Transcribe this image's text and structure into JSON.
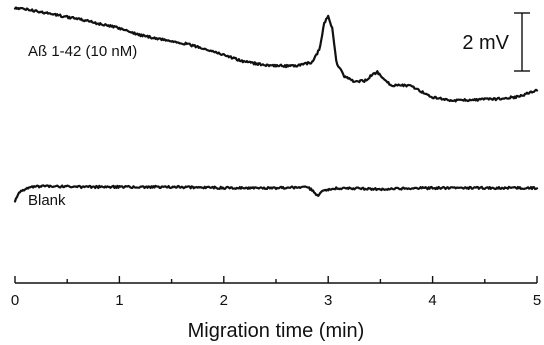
{
  "chart_data": {
    "type": "line",
    "xlabel": "Migration time (min)",
    "xlim": [
      0,
      5
    ],
    "xticks": [
      "0",
      "1",
      "2",
      "3",
      "4",
      "5"
    ],
    "y_axis_shown": false,
    "scale_bar": {
      "label": "2 mV",
      "value_mV": 2
    },
    "series": [
      {
        "name": "Aß 1-42 (10 nM)",
        "unit": "mV",
        "x": [
          0,
          0.1,
          0.3,
          0.5,
          0.7,
          0.9,
          1.0,
          1.2,
          1.4,
          1.6,
          1.8,
          2.0,
          2.2,
          2.4,
          2.6,
          2.75,
          2.85,
          2.92,
          2.96,
          3.0,
          3.04,
          3.08,
          3.15,
          3.25,
          3.35,
          3.42,
          3.47,
          3.52,
          3.6,
          3.7,
          3.8,
          3.9,
          4.0,
          4.1,
          4.2,
          4.3,
          4.4,
          4.5,
          4.6,
          4.7,
          4.8,
          4.9,
          5.0
        ],
        "values": [
          8.92,
          8.88,
          8.73,
          8.58,
          8.42,
          8.23,
          8.15,
          7.88,
          7.72,
          7.58,
          7.38,
          7.12,
          6.85,
          6.73,
          6.69,
          6.73,
          6.85,
          7.38,
          8.35,
          8.58,
          8.12,
          6.81,
          6.31,
          6.08,
          6.12,
          6.35,
          6.46,
          6.23,
          5.96,
          5.96,
          5.92,
          5.69,
          5.5,
          5.42,
          5.35,
          5.38,
          5.38,
          5.42,
          5.42,
          5.46,
          5.5,
          5.62,
          5.77
        ]
      },
      {
        "name": "Blank",
        "unit": "mV",
        "x": [
          0,
          0.05,
          0.15,
          0.3,
          0.6,
          1.0,
          1.5,
          2.0,
          2.5,
          2.8,
          2.86,
          2.9,
          2.95,
          3.1,
          3.5,
          4.0,
          4.5,
          5.0
        ],
        "values": [
          1.5,
          1.88,
          2.04,
          2.08,
          2.04,
          2.04,
          2.04,
          2.0,
          2.0,
          2.04,
          1.88,
          1.69,
          1.92,
          2.0,
          1.96,
          2.0,
          2.0,
          2.0
        ]
      }
    ]
  }
}
